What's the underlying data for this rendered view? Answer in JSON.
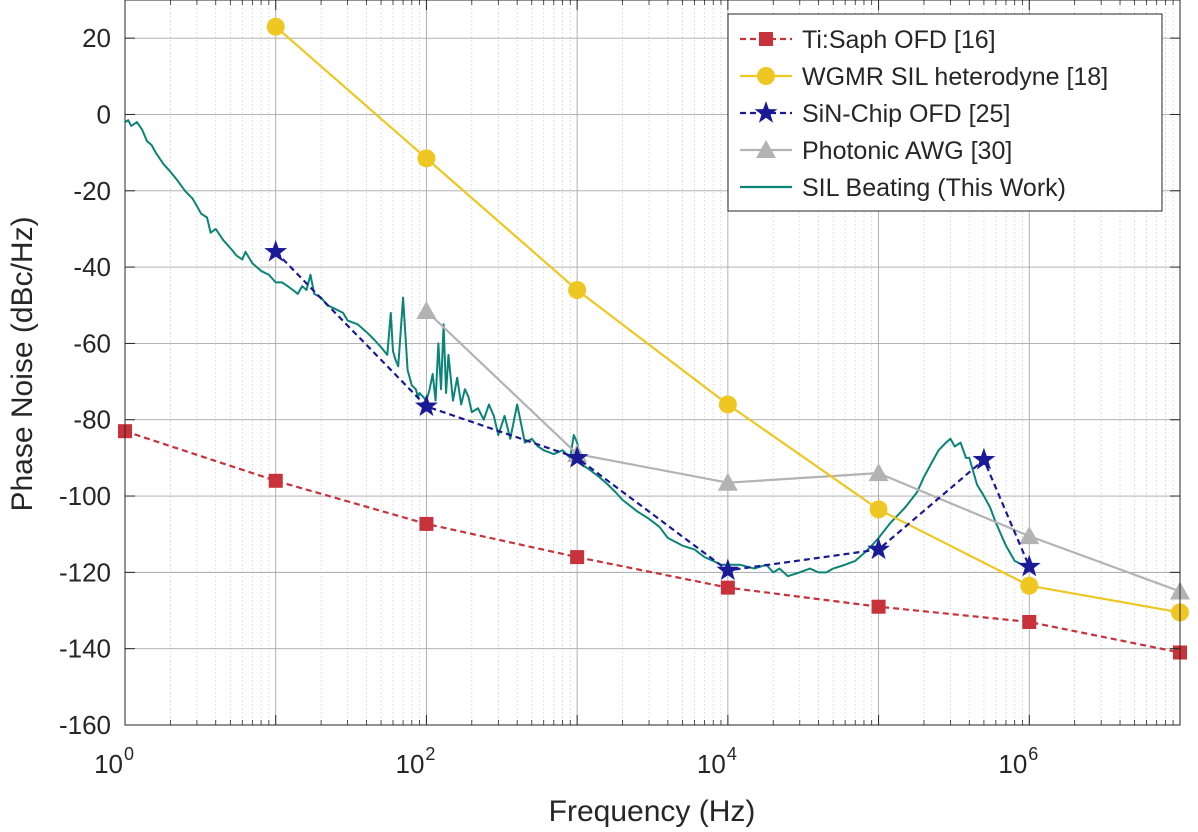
{
  "chart_data": {
    "type": "line",
    "xscale": "log",
    "xlim_exp": [
      0,
      7
    ],
    "ylim": [
      -160,
      30
    ],
    "yticks": [
      20,
      0,
      -20,
      -40,
      -60,
      -80,
      -100,
      -120,
      -140,
      -160
    ],
    "xticks": [
      {
        "exp": 0,
        "base": "10",
        "sup": "0"
      },
      {
        "exp": 2,
        "base": "10",
        "sup": "2"
      },
      {
        "exp": 4,
        "base": "10",
        "sup": "4"
      },
      {
        "exp": 6,
        "base": "10",
        "sup": "6"
      }
    ],
    "xlabel": "Frequency (Hz)",
    "ylabel": "Phase Noise (dBc/Hz)",
    "grid": true,
    "legend_location": "top-right",
    "series": [
      {
        "name": "Ti:Saph OFD [16]",
        "color": "#c8323a",
        "dash": "dashed",
        "marker": "square",
        "x": [
          1,
          10,
          100,
          1000,
          10000,
          100000,
          1000000,
          10000000
        ],
        "y": [
          -83,
          -96,
          -107.3,
          -116,
          -124,
          -129,
          -133,
          -141
        ]
      },
      {
        "name": "WGMR SIL heterodyne [18]",
        "color": "#efc722",
        "dash": "solid",
        "marker": "circle",
        "x": [
          10,
          100,
          1000,
          10000,
          100000,
          1000000,
          10000000
        ],
        "y": [
          23,
          -11.5,
          -46,
          -76,
          -103.5,
          -123.5,
          -130.5
        ]
      },
      {
        "name": "SiN-Chip OFD [25]",
        "color": "#1a1a96",
        "dash": "dashed",
        "marker": "star",
        "x": [
          10,
          100,
          1000,
          10000,
          100000,
          500000,
          1000000
        ],
        "y": [
          -36,
          -76.5,
          -90,
          -119.5,
          -114,
          -90.5,
          -118.5
        ]
      },
      {
        "name": "Photonic AWG [30]",
        "color": "#b3b3b3",
        "dash": "solid",
        "marker": "triangle",
        "x": [
          100,
          1000,
          10000,
          100000,
          1000000,
          10000000
        ],
        "y": [
          -51.5,
          -89,
          -96.5,
          -94,
          -110.5,
          -125
        ]
      },
      {
        "name": "SIL Beating (This Work)",
        "color": "#0b8478",
        "dash": "solid",
        "marker": "none",
        "x": [
          1,
          1.05,
          1.1,
          1.2,
          1.3,
          1.4,
          1.5,
          1.6,
          1.8,
          2,
          2.2,
          2.5,
          2.8,
          3,
          3.2,
          3.5,
          3.7,
          4,
          4.5,
          5,
          5.5,
          6,
          6.3,
          7,
          8,
          9,
          10,
          11,
          12,
          13,
          14,
          15,
          16,
          17,
          18,
          20,
          22,
          25,
          28,
          30,
          35,
          40,
          45,
          50,
          55,
          58,
          60,
          62,
          65,
          70,
          75,
          80,
          85,
          88,
          90,
          95,
          100,
          105,
          110,
          115,
          120,
          125,
          130,
          135,
          140,
          150,
          160,
          170,
          180,
          190,
          200,
          220,
          240,
          260,
          280,
          300,
          330,
          360,
          400,
          450,
          500,
          550,
          600,
          700,
          800,
          900,
          950,
          1000,
          1050,
          1100,
          1200,
          1400,
          1600,
          1800,
          2000,
          2500,
          3000,
          3500,
          4000,
          5000,
          6000,
          7000,
          8000,
          9000,
          10000,
          12000,
          15000,
          18000,
          20000,
          22000,
          25000,
          30000,
          35000,
          40000,
          45000,
          50000,
          60000,
          70000,
          80000,
          90000,
          100000,
          120000,
          150000,
          180000,
          200000,
          220000,
          250000,
          280000,
          300000,
          320000,
          350000,
          380000,
          400000,
          450000,
          500000,
          550000,
          600000,
          700000,
          800000,
          900000,
          1000000
        ],
        "y": [
          -2,
          -1.5,
          -3,
          -2,
          -4,
          -7,
          -8,
          -10,
          -13,
          -15,
          -17,
          -20,
          -22,
          -24,
          -26,
          -27,
          -31,
          -30,
          -33,
          -35,
          -37,
          -38,
          -36,
          -39,
          -41,
          -42,
          -44,
          -44,
          -45,
          -46,
          -47,
          -45,
          -46,
          -42,
          -47,
          -48,
          -50,
          -51,
          -52,
          -54,
          -55,
          -57,
          -59,
          -61,
          -63,
          -52,
          -62,
          -64,
          -66,
          -48,
          -67,
          -71,
          -72,
          -74,
          -73,
          -74,
          -75,
          -72,
          -68,
          -75,
          -60,
          -72,
          -55,
          -73,
          -63,
          -75,
          -69,
          -76,
          -72,
          -74,
          -78,
          -77,
          -80,
          -76,
          -79,
          -84,
          -79,
          -85,
          -76,
          -86,
          -85,
          -87,
          -88,
          -89,
          -88,
          -90,
          -84,
          -86,
          -91,
          -92,
          -93,
          -95,
          -97,
          -99,
          -101,
          -104,
          -106,
          -108,
          -111,
          -113,
          -114,
          -116,
          -117,
          -118,
          -118,
          -118,
          -119,
          -118,
          -120,
          -119,
          -121,
          -120,
          -119,
          -120,
          -120,
          -119,
          -118,
          -117,
          -115,
          -113,
          -111,
          -107,
          -103,
          -99,
          -95,
          -92,
          -88,
          -86,
          -85,
          -87,
          -86,
          -90,
          -90,
          -97,
          -100,
          -103,
          -107,
          -113,
          -117,
          -118,
          -119
        ]
      }
    ]
  }
}
